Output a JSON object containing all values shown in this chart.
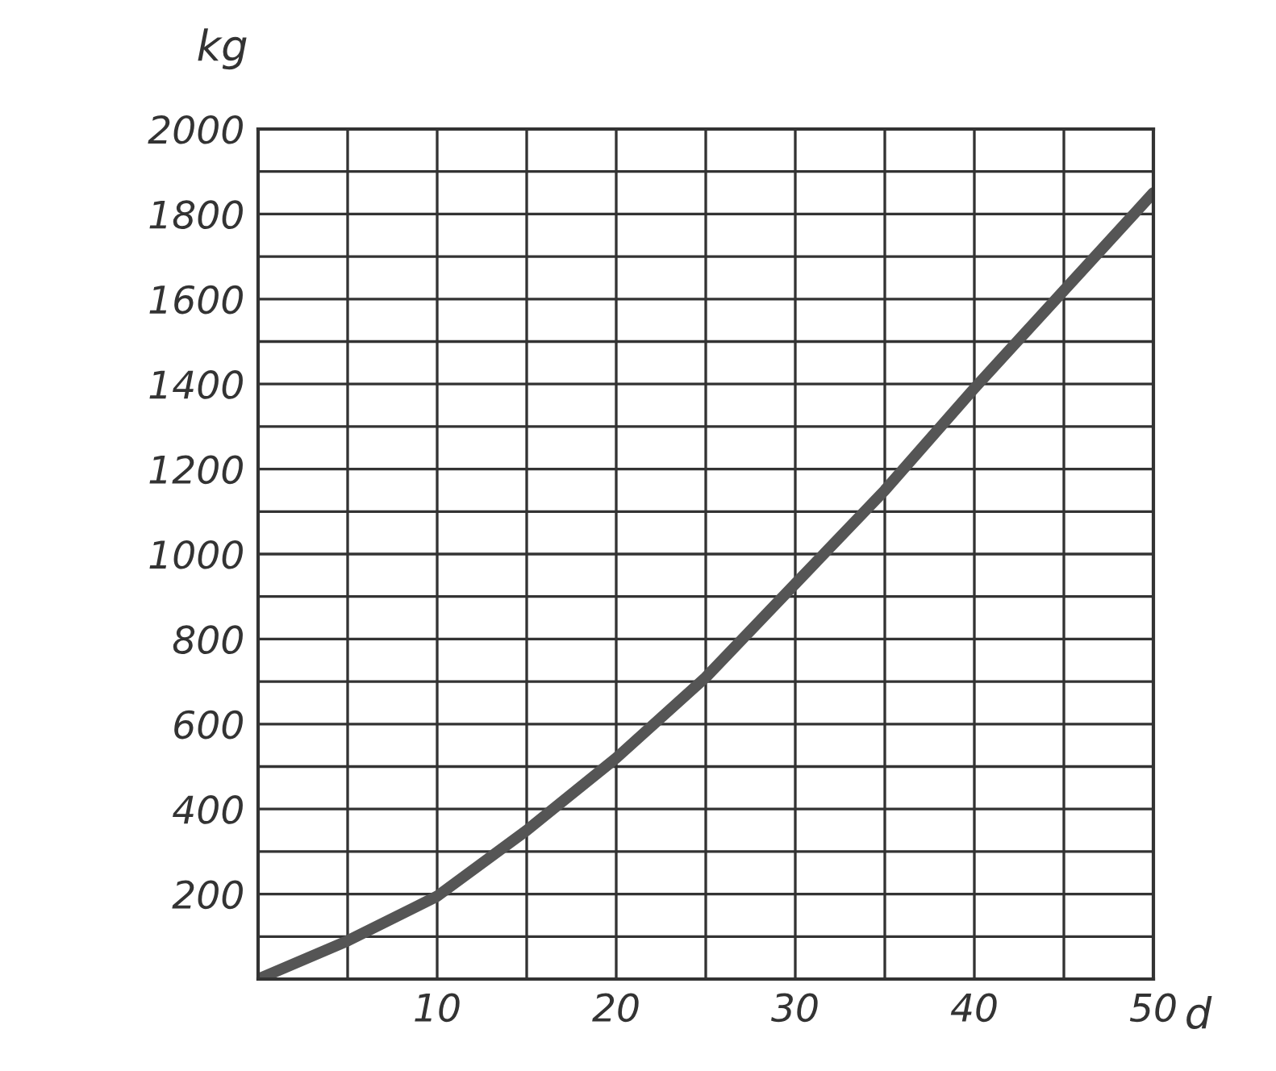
{
  "chart_data": {
    "type": "line",
    "xlabel": "d",
    "ylabel": "kg",
    "x": [
      0,
      5,
      10,
      15,
      20,
      25,
      30,
      35,
      40,
      45,
      50
    ],
    "series": [
      {
        "color": "#555555",
        "values": [
          0,
          90,
          195,
          350,
          520,
          710,
          930,
          1150,
          1390,
          1620,
          1850
        ]
      }
    ],
    "xlim": [
      0,
      50
    ],
    "ylim": [
      0,
      2000
    ],
    "xticks": [
      {
        "value": 0,
        "label": null
      },
      {
        "value": 5,
        "label": null
      },
      10,
      {
        "value": 15,
        "label": null
      },
      20,
      {
        "value": 25,
        "label": null
      },
      30,
      {
        "value": 35,
        "label": null
      },
      40,
      {
        "value": 45,
        "label": null
      },
      50
    ],
    "yticks": [
      {
        "value": 0,
        "label": null
      },
      {
        "value": 100,
        "label": null
      },
      200,
      {
        "value": 300,
        "label": null
      },
      400,
      {
        "value": 500,
        "label": null
      },
      600,
      {
        "value": 700,
        "label": null
      },
      800,
      {
        "value": 900,
        "label": null
      },
      1000,
      {
        "value": 1100,
        "label": null
      },
      1200,
      {
        "value": 1300,
        "label": null
      },
      1400,
      {
        "value": 1500,
        "label": null
      },
      1600,
      {
        "value": 1700,
        "label": null
      },
      1800,
      {
        "value": 1900,
        "label": null
      },
      2000
    ],
    "grid": true,
    "line_style": "solid"
  }
}
